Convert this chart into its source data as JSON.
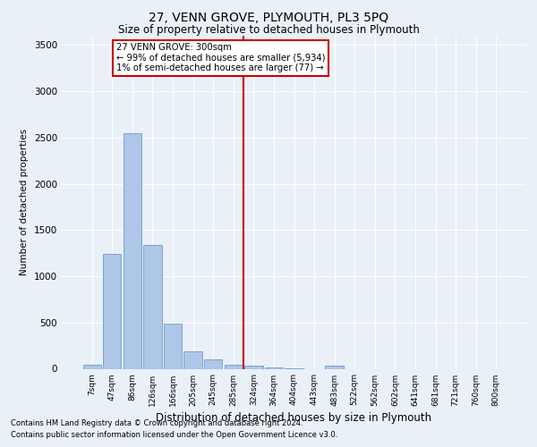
{
  "title": "27, VENN GROVE, PLYMOUTH, PL3 5PQ",
  "subtitle": "Size of property relative to detached houses in Plymouth",
  "xlabel": "Distribution of detached houses by size in Plymouth",
  "ylabel": "Number of detached properties",
  "bar_labels": [
    "7sqm",
    "47sqm",
    "86sqm",
    "126sqm",
    "166sqm",
    "205sqm",
    "245sqm",
    "285sqm",
    "324sqm",
    "364sqm",
    "404sqm",
    "443sqm",
    "483sqm",
    "522sqm",
    "562sqm",
    "602sqm",
    "641sqm",
    "681sqm",
    "721sqm",
    "760sqm",
    "800sqm"
  ],
  "bar_values": [
    45,
    1245,
    2550,
    1335,
    490,
    185,
    105,
    40,
    30,
    15,
    5,
    0,
    30,
    0,
    0,
    0,
    0,
    0,
    0,
    0,
    0
  ],
  "bar_color": "#aec6e8",
  "bar_edge_color": "#5a8fc4",
  "vline_x": 7.5,
  "vline_color": "#cc0000",
  "ylim": [
    0,
    3600
  ],
  "yticks": [
    0,
    500,
    1000,
    1500,
    2000,
    2500,
    3000,
    3500
  ],
  "annotation_title": "27 VENN GROVE: 300sqm",
  "annotation_line1": "← 99% of detached houses are smaller (5,934)",
  "annotation_line2": "1% of semi-detached houses are larger (77) →",
  "annotation_box_color": "#ffffff",
  "annotation_border_color": "#cc0000",
  "bg_color": "#eaf0f8",
  "plot_bg_color": "#eaf0f8",
  "grid_color": "#ffffff",
  "footer1": "Contains HM Land Registry data © Crown copyright and database right 2024.",
  "footer2": "Contains public sector information licensed under the Open Government Licence v3.0."
}
